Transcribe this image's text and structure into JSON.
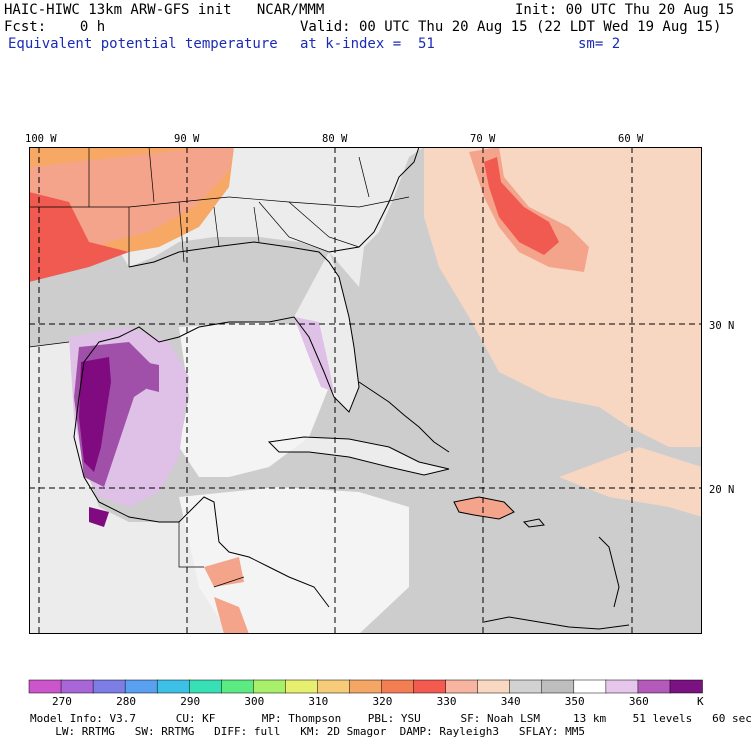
{
  "header": {
    "model_line": "HAIC-HIWC 13km ARW-GFS init   NCAR/MMM",
    "init": "Init: 00 UTC Thu 20 Aug 15",
    "fcst": "Fcst:    0 h",
    "valid": "Valid: 00 UTC Thu 20 Aug 15 (22 LDT Wed 19 Aug 15)",
    "field": "Equivalent potential temperature",
    "level": "at k-index =  51",
    "smooth": "sm= 2"
  },
  "map": {
    "lon_labels": [
      "100 W",
      "90 W",
      "80 W",
      "70 W",
      "60 W"
    ],
    "lat_labels": [
      "30 N",
      "20 N"
    ]
  },
  "colorbar": {
    "colors": [
      "#cc55cc",
      "#a966d9",
      "#7d7de6",
      "#5aa0f0",
      "#3cc0e6",
      "#37e0b4",
      "#5ceb82",
      "#a8f06a",
      "#e6f06e",
      "#f6cc78",
      "#f6a664",
      "#f47e54",
      "#f45a50",
      "#f7b4a0",
      "#f8d8c0",
      "#d2d2d2",
      "#bebebe",
      "#ffffff",
      "#e6c6ea",
      "#b45aba",
      "#7a1282"
    ],
    "labels": [
      "270",
      "280",
      "290",
      "300",
      "310",
      "320",
      "330",
      "340",
      "350",
      "360"
    ],
    "unit": "K"
  },
  "legend_colors": {
    "ocean_gray": "#cdcdcd",
    "peach": "#f7d6c2",
    "salmon": "#f5a48c",
    "red": "#f05a50",
    "orange": "#f6a864",
    "lavender": "#dfc0e6",
    "purple": "#a050a8",
    "dark_purple": "#800a80"
  },
  "footer": {
    "line1": "Model Info: V3.7      CU: KF       MP: Thompson    PBL: YSU      SF: Noah LSM     13 km    51 levels   60 sec",
    "line2": "  LW: RRTMG   SW: RRTMG   DIFF: full   KM: 2D Smagor  DAMP: Rayleigh3   SFLAY: MM5"
  }
}
